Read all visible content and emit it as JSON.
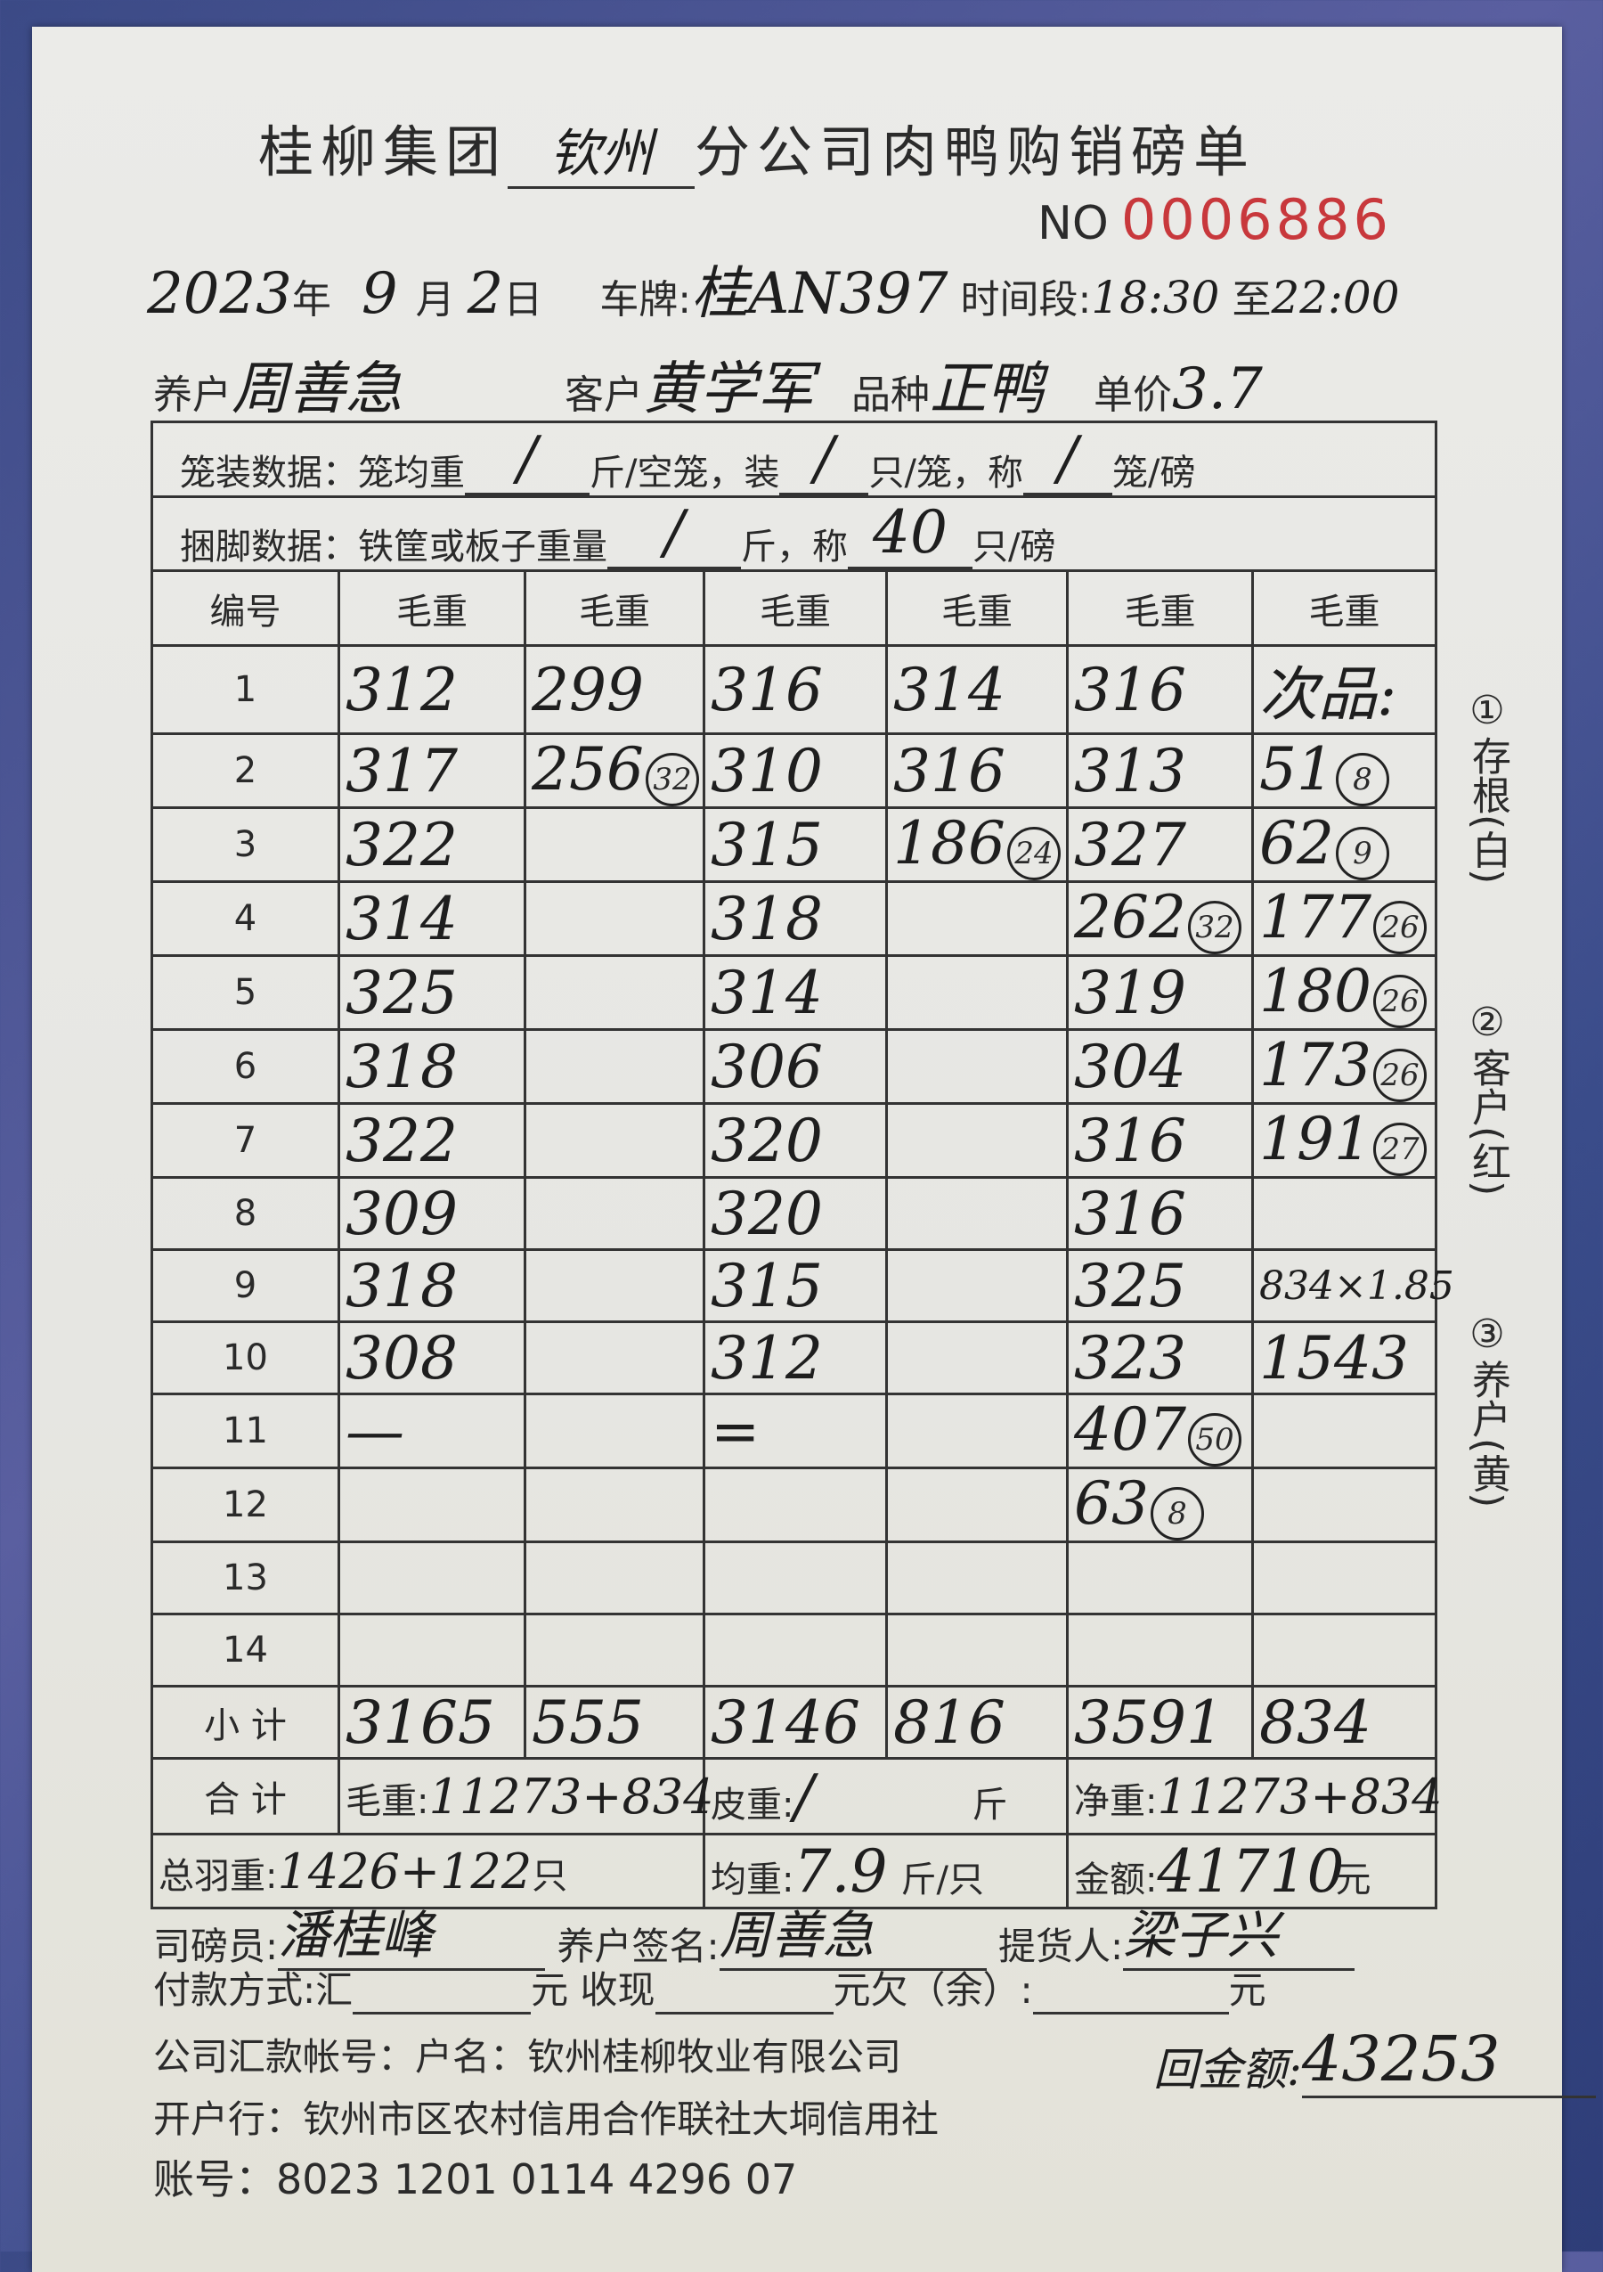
{
  "header": {
    "title_prefix": "桂柳集团",
    "branch": "钦州",
    "title_suffix": "分公司肉鸭购销磅单",
    "no_label": "NO",
    "serial": "0006886"
  },
  "info": {
    "year": "2023",
    "year_label": "年",
    "month": "9",
    "month_label": "月",
    "day": "2",
    "day_label": "日",
    "plate_label": "车牌:",
    "plate": "桂AN397",
    "time_label": "时间段:",
    "time_start": "18:30",
    "time_to": "至",
    "time_end": "22:00",
    "farmer_label": "养户",
    "farmer": "周善急",
    "customer_label": "客户",
    "customer": "黄学军",
    "variety_label": "品种",
    "variety": "正鸭",
    "price_label": "单价",
    "price": "3.7"
  },
  "cage": {
    "text1": "笼装数据：笼均重",
    "v1": "/",
    "text2": "斤/空笼，装",
    "v2": "/",
    "text3": "只/笼，称",
    "v3": "/",
    "text4": "笼/磅"
  },
  "bind": {
    "text1": "捆脚数据：铁筐或板子重量",
    "v1": "/",
    "text2": "斤，称",
    "v2": "40",
    "text3": "只/磅"
  },
  "table": {
    "headers": [
      "编号",
      "毛重",
      "毛重",
      "毛重",
      "毛重",
      "毛重",
      "毛重"
    ],
    "rows": [
      {
        "n": "1",
        "cells": [
          {
            "v": "312"
          },
          {
            "v": "299"
          },
          {
            "v": "316"
          },
          {
            "v": "314"
          },
          {
            "v": "316"
          },
          {
            "v": "次品:"
          }
        ]
      },
      {
        "n": "2",
        "cells": [
          {
            "v": "317"
          },
          {
            "v": "256",
            "c": "32"
          },
          {
            "v": "310"
          },
          {
            "v": "316"
          },
          {
            "v": "313"
          },
          {
            "v": "51",
            "c": "8"
          }
        ]
      },
      {
        "n": "3",
        "cells": [
          {
            "v": "322"
          },
          {
            "v": ""
          },
          {
            "v": "315"
          },
          {
            "v": "186",
            "c": "24"
          },
          {
            "v": "327"
          },
          {
            "v": "62",
            "c": "9"
          }
        ]
      },
      {
        "n": "4",
        "cells": [
          {
            "v": "314"
          },
          {
            "v": ""
          },
          {
            "v": "318"
          },
          {
            "v": ""
          },
          {
            "v": "262",
            "c": "32"
          },
          {
            "v": "177",
            "c": "26"
          }
        ]
      },
      {
        "n": "5",
        "cells": [
          {
            "v": "325"
          },
          {
            "v": ""
          },
          {
            "v": "314"
          },
          {
            "v": ""
          },
          {
            "v": "319"
          },
          {
            "v": "180",
            "c": "26"
          }
        ]
      },
      {
        "n": "6",
        "cells": [
          {
            "v": "318"
          },
          {
            "v": ""
          },
          {
            "v": "306"
          },
          {
            "v": ""
          },
          {
            "v": "304"
          },
          {
            "v": "173",
            "c": "26"
          }
        ]
      },
      {
        "n": "7",
        "cells": [
          {
            "v": "322"
          },
          {
            "v": ""
          },
          {
            "v": "320"
          },
          {
            "v": ""
          },
          {
            "v": "316"
          },
          {
            "v": "191",
            "c": "27"
          }
        ]
      },
      {
        "n": "8",
        "cells": [
          {
            "v": "309"
          },
          {
            "v": ""
          },
          {
            "v": "320"
          },
          {
            "v": ""
          },
          {
            "v": "316"
          },
          {
            "v": ""
          }
        ]
      },
      {
        "n": "9",
        "cells": [
          {
            "v": "318"
          },
          {
            "v": ""
          },
          {
            "v": "315"
          },
          {
            "v": ""
          },
          {
            "v": "325"
          },
          {
            "v": "834×1.85"
          }
        ]
      },
      {
        "n": "10",
        "cells": [
          {
            "v": "308"
          },
          {
            "v": ""
          },
          {
            "v": "312"
          },
          {
            "v": ""
          },
          {
            "v": "323"
          },
          {
            "v": "1543"
          }
        ]
      },
      {
        "n": "11",
        "cells": [
          {
            "v": "—"
          },
          {
            "v": ""
          },
          {
            "v": "="
          },
          {
            "v": ""
          },
          {
            "v": "407",
            "c": "50"
          },
          {
            "v": ""
          }
        ]
      },
      {
        "n": "12",
        "cells": [
          {
            "v": ""
          },
          {
            "v": ""
          },
          {
            "v": ""
          },
          {
            "v": ""
          },
          {
            "v": "63",
            "c": "8"
          },
          {
            "v": ""
          }
        ]
      },
      {
        "n": "13",
        "cells": [
          {
            "v": ""
          },
          {
            "v": ""
          },
          {
            "v": ""
          },
          {
            "v": ""
          },
          {
            "v": ""
          },
          {
            "v": ""
          }
        ]
      },
      {
        "n": "14",
        "cells": [
          {
            "v": ""
          },
          {
            "v": ""
          },
          {
            "v": ""
          },
          {
            "v": ""
          },
          {
            "v": ""
          },
          {
            "v": ""
          }
        ]
      }
    ],
    "subtotal_label": "小 计",
    "subtotals": [
      "3165",
      "555",
      "3146",
      "816",
      "3591",
      "834"
    ],
    "total_label": "合 计",
    "gross_label": "毛重:",
    "gross": "11273+834",
    "tare_label": "皮重:",
    "tare": "/",
    "tare_unit": "斤",
    "net_label": "净重:",
    "net": "11273+834",
    "feather_label": "总羽重:",
    "feather": "1426+122",
    "feather_unit": "只",
    "avg_label": "均重:",
    "avg": "7.9",
    "avg_unit": "斤/只",
    "amount_label": "金额:",
    "amount": "41710",
    "amount_unit": "元"
  },
  "side": {
    "n1": "①",
    "l1": "存根(白)",
    "n2": "②",
    "l2": "客户(红)",
    "n3": "③",
    "l3": "养户(黄)"
  },
  "footer": {
    "weigher_label": "司磅员:",
    "weigher": "潘桂峰",
    "farmer_sign_label": "养户签名:",
    "farmer_sign": "周善急",
    "pickup_label": "提货人:",
    "pickup": "梁子兴",
    "pay_label": "付款方式:汇",
    "yuan1": "元 收现",
    "yuan2": "元欠（余）:",
    "yuan3": "元",
    "account_name": "公司汇款帐号：户名：钦州桂柳牧业有限公司",
    "bank": "开户行：钦州市区农村信用合作联社大垌信用社",
    "account_no": "账号：8023 1201 0114 4296 07",
    "remit_label": "回金额:",
    "remit": "43253"
  }
}
